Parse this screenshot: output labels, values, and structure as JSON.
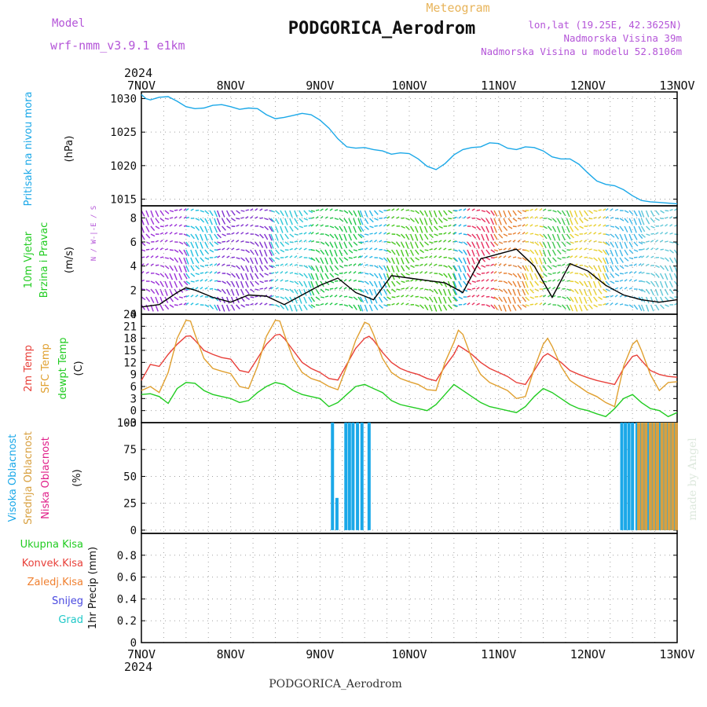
{
  "header": {
    "model_label": "Model",
    "model_name": "wrf-nmm_v3.9.1  e1km",
    "chart_kind": "Meteogram",
    "station": "PODGORICA_Aerodrom",
    "lonlat": "lon,lat (19.25E, 42.3625N)",
    "elevation": "Nadmorska Visina 39m",
    "model_elevation": "Nadmorska Visina u modelu 52.8106m",
    "footer_station": "PODGORICA_Aerodrom",
    "credit": "made by Angel"
  },
  "colors": {
    "pressure": "#1ba8e8",
    "temp2m": "#e8403a",
    "sfc_temp": "#e0a030",
    "dewpoint": "#22cc22",
    "high_cloud": "#1ba8e8",
    "mid_cloud": "#d8a040",
    "low_cloud": "#e0208a",
    "model_purple": "#b455d8",
    "meteogram_orange": "#e8b45a"
  },
  "time_axis": {
    "year": "2024",
    "ticks": [
      "7NOV",
      "8NOV",
      "9NOV",
      "10NOV",
      "11NOV",
      "12NOV",
      "13NOV"
    ]
  },
  "chart_data": [
    {
      "id": "pressure",
      "type": "line",
      "ylabel_lines": [
        "Pritisak na nivou mora"
      ],
      "unit": "(hPa)",
      "ylim": [
        1014,
        1031
      ],
      "yticks": [
        1015,
        1020,
        1025,
        1030
      ],
      "grid": true,
      "series": [
        {
          "color": "#1ba8e8",
          "x": [
            0,
            0.05,
            0.1,
            0.2,
            0.3,
            0.4,
            0.5,
            0.6,
            0.7,
            0.8,
            0.9,
            1.0,
            1.1,
            1.2,
            1.3,
            1.4,
            1.5,
            1.6,
            1.7,
            1.8,
            1.9,
            2.0,
            2.1,
            2.2,
            2.3,
            2.4,
            2.5,
            2.6,
            2.7,
            2.8,
            2.9,
            3.0,
            3.1,
            3.2,
            3.3,
            3.4,
            3.5,
            3.6,
            3.7,
            3.8,
            3.9,
            4.0,
            4.1,
            4.2,
            4.3,
            4.4,
            4.5,
            4.6,
            4.7,
            4.8,
            4.9,
            5.0,
            5.1,
            5.2,
            5.3,
            5.4,
            5.5,
            5.6,
            5.7,
            5.8,
            5.9,
            6.0
          ],
          "y": [
            1030.6,
            1030.0,
            1029.8,
            1030.2,
            1030.3,
            1029.6,
            1028.8,
            1028.5,
            1028.6,
            1029.0,
            1029.1,
            1028.8,
            1028.4,
            1028.6,
            1028.5,
            1027.6,
            1027.0,
            1027.2,
            1027.5,
            1027.8,
            1027.6,
            1026.8,
            1025.6,
            1024.0,
            1022.8,
            1022.6,
            1022.7,
            1022.4,
            1022.2,
            1021.7,
            1021.9,
            1021.8,
            1021.0,
            1019.9,
            1019.4,
            1020.3,
            1021.6,
            1022.4,
            1022.7,
            1022.8,
            1023.4,
            1023.3,
            1022.6,
            1022.4,
            1022.8,
            1022.7,
            1022.2,
            1021.3,
            1021.0,
            1021.0,
            1020.2,
            1018.9,
            1017.7,
            1017.2,
            1017.0,
            1016.4,
            1015.5,
            1014.8,
            1014.6,
            1014.5,
            1014.4,
            1014.3
          ]
        }
      ]
    },
    {
      "id": "wind",
      "type": "line",
      "ylabel_lines": [
        "10m Vjetar",
        "Brzina i Pravac"
      ],
      "unit": "(m/s)",
      "compass_label": "N / W-|-E / S",
      "ylim": [
        0,
        9
      ],
      "yticks": [
        0,
        2,
        4,
        6,
        8
      ],
      "grid": true,
      "series": [
        {
          "name": "speed",
          "color": "#000000",
          "x": [
            0,
            0.2,
            0.4,
            0.5,
            0.6,
            0.8,
            1.0,
            1.2,
            1.4,
            1.6,
            1.8,
            2.0,
            2.2,
            2.4,
            2.6,
            2.8,
            3.0,
            3.2,
            3.4,
            3.6,
            3.8,
            4.0,
            4.2,
            4.4,
            4.6,
            4.8,
            5.0,
            5.2,
            5.4,
            5.6,
            5.8,
            6.0
          ],
          "y": [
            0.6,
            0.8,
            1.8,
            2.2,
            2.0,
            1.4,
            1.0,
            1.6,
            1.5,
            0.8,
            1.6,
            2.4,
            3.0,
            1.8,
            1.2,
            3.2,
            3.0,
            2.8,
            2.6,
            1.8,
            4.6,
            5.0,
            5.4,
            4.0,
            1.4,
            4.2,
            3.6,
            2.4,
            1.6,
            1.2,
            1.0,
            1.2
          ]
        }
      ]
    },
    {
      "id": "temperature",
      "type": "line",
      "ylabel_lines": [
        "2m Temp",
        "SFC Temp",
        "dewpt Temp"
      ],
      "unit": "(C)",
      "ylim": [
        -3,
        24
      ],
      "yticks": [
        -3,
        0,
        3,
        6,
        9,
        12,
        15,
        18,
        21,
        24
      ],
      "grid": true,
      "series": [
        {
          "name": "2m Temp",
          "color": "#e8403a",
          "x": [
            0,
            0.1,
            0.2,
            0.3,
            0.4,
            0.5,
            0.55,
            0.6,
            0.7,
            0.8,
            0.9,
            1.0,
            1.1,
            1.2,
            1.3,
            1.4,
            1.5,
            1.55,
            1.6,
            1.7,
            1.8,
            1.9,
            2.0,
            2.1,
            2.2,
            2.3,
            2.4,
            2.5,
            2.55,
            2.6,
            2.7,
            2.8,
            2.9,
            3.0,
            3.1,
            3.2,
            3.3,
            3.4,
            3.5,
            3.55,
            3.6,
            3.7,
            3.8,
            3.9,
            4.0,
            4.1,
            4.2,
            4.3,
            4.4,
            4.5,
            4.55,
            4.6,
            4.7,
            4.8,
            4.9,
            5.0,
            5.1,
            5.2,
            5.3,
            5.4,
            5.5,
            5.55,
            5.6,
            5.7,
            5.8,
            5.9,
            6.0
          ],
          "y": [
            7.5,
            11.5,
            11.0,
            14.0,
            16.5,
            18.5,
            18.6,
            17.5,
            15.0,
            14.0,
            13.2,
            12.8,
            10.0,
            9.5,
            13.0,
            16.5,
            18.8,
            19.0,
            18.0,
            15.0,
            12.0,
            10.5,
            9.5,
            8.0,
            7.6,
            11.5,
            15.5,
            18.0,
            18.5,
            17.5,
            14.5,
            12.0,
            10.5,
            9.6,
            9.0,
            8.0,
            7.4,
            11.0,
            14.0,
            16.2,
            15.5,
            14.0,
            12.0,
            10.5,
            9.5,
            8.5,
            7.0,
            6.5,
            10.0,
            13.5,
            14.2,
            13.5,
            12.0,
            10.0,
            9.0,
            8.2,
            7.5,
            7.0,
            6.5,
            10.5,
            13.5,
            13.8,
            12.5,
            10.0,
            9.0,
            8.5,
            8.3
          ]
        },
        {
          "name": "SFC Temp",
          "color": "#e0a030",
          "x": [
            0,
            0.1,
            0.2,
            0.3,
            0.4,
            0.5,
            0.55,
            0.6,
            0.7,
            0.8,
            0.9,
            1.0,
            1.1,
            1.2,
            1.3,
            1.4,
            1.5,
            1.55,
            1.6,
            1.7,
            1.8,
            1.9,
            2.0,
            2.1,
            2.2,
            2.3,
            2.4,
            2.5,
            2.55,
            2.6,
            2.7,
            2.8,
            2.9,
            3.0,
            3.1,
            3.2,
            3.3,
            3.4,
            3.5,
            3.55,
            3.6,
            3.7,
            3.8,
            3.9,
            4.0,
            4.1,
            4.2,
            4.3,
            4.4,
            4.5,
            4.55,
            4.6,
            4.7,
            4.8,
            4.9,
            5.0,
            5.1,
            5.2,
            5.3,
            5.4,
            5.5,
            5.55,
            5.6,
            5.7,
            5.8,
            5.9,
            6.0
          ],
          "y": [
            5.0,
            6.0,
            4.5,
            9.5,
            18.0,
            22.5,
            22.3,
            19.0,
            13.0,
            10.5,
            9.8,
            9.2,
            6.0,
            5.5,
            11.0,
            18.5,
            22.5,
            22.3,
            19.0,
            13.0,
            9.5,
            8.0,
            7.3,
            6.0,
            5.2,
            11.0,
            17.5,
            22.0,
            21.5,
            19.0,
            13.0,
            9.5,
            8.0,
            7.2,
            6.5,
            5.2,
            5.0,
            12.0,
            17.0,
            20.0,
            19.0,
            13.0,
            9.0,
            7.0,
            6.0,
            5.0,
            3.0,
            3.5,
            10.5,
            16.5,
            18.0,
            16.0,
            11.0,
            7.5,
            6.0,
            4.5,
            3.5,
            2.0,
            1.0,
            11.0,
            16.5,
            17.5,
            15.0,
            9.0,
            5.0,
            7.0,
            7.2
          ]
        },
        {
          "name": "dewpt Temp",
          "color": "#22cc22",
          "x": [
            0,
            0.1,
            0.2,
            0.3,
            0.4,
            0.5,
            0.6,
            0.7,
            0.8,
            0.9,
            1.0,
            1.1,
            1.2,
            1.3,
            1.4,
            1.5,
            1.6,
            1.7,
            1.8,
            1.9,
            2.0,
            2.1,
            2.2,
            2.3,
            2.4,
            2.5,
            2.6,
            2.7,
            2.8,
            2.9,
            3.0,
            3.1,
            3.2,
            3.3,
            3.4,
            3.5,
            3.6,
            3.7,
            3.8,
            3.9,
            4.0,
            4.1,
            4.2,
            4.3,
            4.4,
            4.5,
            4.6,
            4.7,
            4.8,
            4.9,
            5.0,
            5.1,
            5.2,
            5.3,
            5.4,
            5.5,
            5.6,
            5.7,
            5.8,
            5.9,
            6.0
          ],
          "y": [
            4.0,
            4.2,
            3.5,
            1.8,
            5.5,
            7.0,
            6.8,
            5.0,
            4.0,
            3.5,
            3.0,
            2.0,
            2.5,
            4.5,
            6.0,
            7.0,
            6.5,
            5.0,
            4.0,
            3.5,
            3.0,
            1.0,
            2.0,
            4.0,
            6.0,
            6.5,
            5.5,
            4.5,
            2.5,
            1.5,
            1.0,
            0.5,
            0.0,
            1.5,
            4.0,
            6.5,
            5.0,
            3.5,
            2.0,
            1.0,
            0.5,
            0.0,
            -0.5,
            1.0,
            3.5,
            5.5,
            4.5,
            3.0,
            1.5,
            0.5,
            0.0,
            -0.8,
            -1.5,
            0.5,
            3.0,
            4.0,
            2.0,
            0.5,
            0.0,
            -1.5,
            -0.5
          ]
        }
      ]
    },
    {
      "id": "cloud",
      "type": "bar",
      "ylabel_lines": [
        "Visoka Oblacnost",
        "Srednja Oblacnost",
        "Niska Oblacnost"
      ],
      "unit": "(%)",
      "ylim": [
        -3,
        100
      ],
      "yticks": [
        0,
        25,
        50,
        75,
        100
      ],
      "grid": true,
      "series": [
        {
          "name": "Visoka Oblacnost",
          "color": "#1ba8e8",
          "x": [
            2.14,
            2.19,
            2.29,
            2.33,
            2.37,
            2.42,
            2.47,
            2.55,
            5.38,
            5.42,
            5.46,
            5.5,
            5.55,
            5.59,
            5.63,
            5.68,
            5.72,
            5.76,
            5.8,
            5.85,
            5.89,
            5.93,
            5.97
          ],
          "y": [
            100,
            30,
            100,
            100,
            100,
            100,
            100,
            100,
            100,
            100,
            100,
            100,
            100,
            100,
            100,
            100,
            100,
            100,
            100,
            100,
            100,
            100,
            100
          ]
        },
        {
          "name": "Srednja Oblacnost",
          "color": "#d8a040",
          "x": [
            5.57,
            5.61,
            5.65,
            5.7,
            5.74,
            5.78,
            5.83,
            5.87,
            5.91,
            5.95,
            5.99
          ],
          "y": [
            100,
            100,
            100,
            100,
            100,
            100,
            100,
            100,
            100,
            100,
            100
          ]
        }
      ]
    },
    {
      "id": "precip",
      "type": "bar",
      "ylabel_lines": [
        "1hr Precip (mm)"
      ],
      "legend": [
        "Ukupna Kisa",
        "Konvek.Kisa",
        "Zaledj.Kisa",
        "Snijeg",
        "Grad"
      ],
      "legend_colors": [
        "#22cc22",
        "#e8403a",
        "#f08030",
        "#4848e0",
        "#20c8c8"
      ],
      "ylim": [
        0,
        1.0
      ],
      "yticks": [
        0,
        0.2,
        0.4,
        0.6,
        0.8
      ],
      "grid": true,
      "series": []
    }
  ]
}
